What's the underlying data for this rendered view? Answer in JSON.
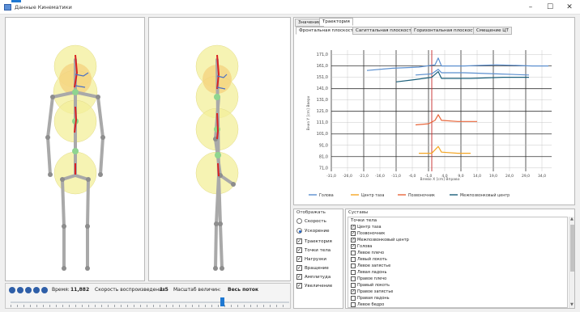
{
  "window": {
    "title": "Данные Кинематики",
    "minimize": "–",
    "maximize": "☐",
    "close": "✕"
  },
  "playback": {
    "time_label": "Время:",
    "time_value": "11,882",
    "speed_label": "Скорость воспроизведения:",
    "speed_value": "1:5",
    "scale_label": "Масштаб величин:",
    "scale_value": "Весь поток",
    "slider_position": 0.76
  },
  "tabs": {
    "main": [
      "Значение",
      "Траектория"
    ],
    "main_active": 1,
    "sub": [
      "Фронтальная плоскость",
      "Сагиттальная плоскость",
      "Горизонтальная плоскость",
      "Смещение ЦТ"
    ],
    "sub_active": 0
  },
  "chart_data": {
    "type": "line",
    "xlabel": "Влево  X [cm]  Вправо",
    "ylabel": "Вниз  Y [cm]  Вверх",
    "xlim": [
      -31,
      37
    ],
    "ylim": [
      68,
      175
    ],
    "x_ticks": [
      "-31,0",
      "-26,0",
      "-21,0",
      "-16,0",
      "-11,0",
      "-6,0",
      "-1,0",
      "4,0",
      "9,0",
      "14,0",
      "19,0",
      "24,0",
      "29,0",
      "34,0"
    ],
    "y_ticks": [
      "71,0",
      "81,0",
      "91,0",
      "101,0",
      "111,0",
      "121,0",
      "131,0",
      "141,0",
      "151,0",
      "161,0",
      "171,0"
    ],
    "grid": true,
    "legend_position": "bottom",
    "colors": {
      "head": "#5b8fcf",
      "pelvis_center": "#f5a623",
      "pelvis": "#e8653a",
      "mass_center": "#1a5f7a"
    },
    "series": [
      {
        "name": "Голова",
        "color": "#5b8fcf",
        "x": [
          -20,
          -12,
          -4,
          1,
          2,
          3,
          10,
          20,
          31,
          36
        ],
        "y": [
          157,
          159,
          160,
          162,
          168,
          161,
          161,
          162,
          161,
          161
        ]
      },
      {
        "name": "Голова",
        "color": "#5b8fcf",
        "x": [
          -5,
          0,
          2,
          3,
          10,
          20,
          30
        ],
        "y": [
          153,
          154,
          158,
          155,
          155,
          154,
          153
        ]
      },
      {
        "name": "Центр таза",
        "color": "#f5a623",
        "x": [
          -4,
          0,
          2,
          3,
          8,
          12
        ],
        "y": [
          84,
          84,
          90,
          85,
          84,
          84
        ]
      },
      {
        "name": "Позвоночник",
        "color": "#e8653a",
        "x": [
          -5,
          -1,
          1,
          2,
          3,
          8,
          14
        ],
        "y": [
          109,
          110,
          113,
          118,
          113,
          112,
          112
        ]
      },
      {
        "name": "Межпозвонковый центр",
        "color": "#1a5f7a",
        "x": [
          -11,
          -5,
          0,
          2,
          3,
          12,
          22,
          30
        ],
        "y": [
          147,
          149,
          151,
          156,
          150,
          150,
          151,
          151
        ]
      }
    ]
  },
  "legend": [
    {
      "label": "Голова",
      "color": "#5b8fcf"
    },
    {
      "label": "Центр таза",
      "color": "#f5a623"
    },
    {
      "label": "Позвоночник",
      "color": "#e8653a"
    },
    {
      "label": "Межпозвонковый центр",
      "color": "#1a5f7a"
    }
  ],
  "display": {
    "title": "Отображать",
    "radios": [
      {
        "label": "Скорость",
        "checked": false
      },
      {
        "label": "Ускорение",
        "checked": true
      }
    ],
    "checks": [
      {
        "label": "Траектория",
        "checked": true
      },
      {
        "label": "Точки тела",
        "checked": true
      },
      {
        "label": "Нагрузки",
        "checked": true
      },
      {
        "label": "Вращение",
        "checked": true
      },
      {
        "label": "Амплитуда",
        "checked": true
      },
      {
        "label": "Увеличение",
        "checked": true
      }
    ]
  },
  "joints": {
    "title": "Суставы",
    "header": "Точки тела",
    "items": [
      {
        "label": "Центр таза",
        "checked": true
      },
      {
        "label": "Позвоночник",
        "checked": true
      },
      {
        "label": "Межпозвонковый центр",
        "checked": true
      },
      {
        "label": "Голова",
        "checked": true
      },
      {
        "label": "Левое плечо",
        "checked": false
      },
      {
        "label": "Левый локоть",
        "checked": false
      },
      {
        "label": "Левое запястье",
        "checked": false
      },
      {
        "label": "Левая ладонь",
        "checked": false
      },
      {
        "label": "Правое плечо",
        "checked": false
      },
      {
        "label": "Правый локоть",
        "checked": false
      },
      {
        "label": "Правое запястье",
        "checked": true
      },
      {
        "label": "Правая ладонь",
        "checked": false
      },
      {
        "label": "Левое бедро",
        "checked": false
      }
    ]
  }
}
